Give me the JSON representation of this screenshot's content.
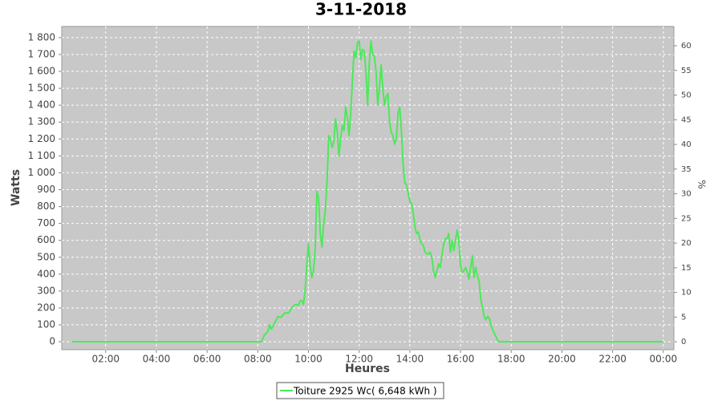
{
  "chart_data": {
    "type": "line",
    "title": "3-11-2018",
    "x_label": "Heures",
    "y_label": "Watts",
    "y2_label": "%",
    "x": [
      40,
      480,
      484,
      488,
      492,
      496,
      500,
      504,
      508,
      512,
      516,
      520,
      524,
      528,
      532,
      536,
      540,
      544,
      548,
      552,
      556,
      560,
      564,
      568,
      572,
      576,
      580,
      584,
      588,
      592,
      596,
      600,
      604,
      608,
      612,
      616,
      620,
      624,
      628,
      632,
      636,
      640,
      644,
      648,
      652,
      656,
      660,
      664,
      668,
      672,
      676,
      680,
      684,
      688,
      692,
      696,
      700,
      704,
      708,
      712,
      716,
      720,
      724,
      728,
      732,
      736,
      740,
      744,
      748,
      752,
      756,
      760,
      764,
      768,
      772,
      776,
      780,
      784,
      788,
      792,
      796,
      800,
      804,
      808,
      812,
      816,
      820,
      824,
      828,
      832,
      836,
      840,
      844,
      848,
      852,
      856,
      860,
      864,
      868,
      872,
      876,
      880,
      884,
      888,
      892,
      896,
      900,
      904,
      908,
      912,
      916,
      920,
      924,
      928,
      932,
      936,
      940,
      944,
      948,
      952,
      956,
      960,
      964,
      968,
      972,
      976,
      980,
      984,
      988,
      992,
      996,
      1000,
      1004,
      1008,
      1012,
      1016,
      1020,
      1024,
      1028,
      1032,
      1036,
      1040,
      1044,
      1048,
      1052,
      1440
    ],
    "series": [
      {
        "name": "Toiture 2925 Wc( 6,648 kWh )",
        "color": "#4ee85a",
        "values": [
          0,
          0,
          0,
          0,
          20,
          40,
          50,
          60,
          100,
          75,
          90,
          110,
          130,
          150,
          145,
          145,
          160,
          170,
          170,
          170,
          180,
          200,
          210,
          220,
          220,
          215,
          240,
          245,
          220,
          300,
          450,
          580,
          450,
          380,
          420,
          550,
          890,
          850,
          640,
          560,
          700,
          780,
          950,
          1220,
          1200,
          1150,
          1180,
          1320,
          1250,
          1100,
          1200,
          1280,
          1250,
          1390,
          1330,
          1220,
          1350,
          1550,
          1720,
          1680,
          1770,
          1780,
          1670,
          1730,
          1720,
          1600,
          1400,
          1650,
          1780,
          1700,
          1690,
          1600,
          1400,
          1500,
          1640,
          1500,
          1400,
          1450,
          1470,
          1300,
          1240,
          1220,
          1170,
          1200,
          1350,
          1390,
          1250,
          1050,
          940,
          930,
          880,
          830,
          820,
          760,
          680,
          640,
          650,
          600,
          580,
          570,
          530,
          520,
          520,
          530,
          500,
          420,
          380,
          420,
          460,
          440,
          510,
          580,
          610,
          610,
          640,
          530,
          600,
          540,
          600,
          660,
          600,
          450,
          410,
          420,
          440,
          410,
          370,
          440,
          510,
          380,
          440,
          390,
          360,
          250,
          200,
          150,
          130,
          150,
          140,
          100,
          70,
          50,
          30,
          5,
          0,
          0
        ]
      }
    ],
    "xlim": [
      16,
      1465
    ],
    "xticks": [
      {
        "value": 120,
        "label": "02:00"
      },
      {
        "value": 240,
        "label": "04:00"
      },
      {
        "value": 360,
        "label": "06:00"
      },
      {
        "value": 480,
        "label": "08:00"
      },
      {
        "value": 600,
        "label": "10:00"
      },
      {
        "value": 720,
        "label": "12:00"
      },
      {
        "value": 840,
        "label": "14:00"
      },
      {
        "value": 960,
        "label": "16:00"
      },
      {
        "value": 1080,
        "label": "18:00"
      },
      {
        "value": 1200,
        "label": "20:00"
      },
      {
        "value": 1320,
        "label": "22:00"
      },
      {
        "value": 1440,
        "label": "00:00"
      }
    ],
    "ylim": [
      -47,
      1866
    ],
    "yticks": [
      0,
      100,
      200,
      300,
      400,
      500,
      600,
      700,
      800,
      900,
      {
        "value": 1000,
        "label": "1 000"
      },
      {
        "value": 1100,
        "label": "1 100"
      },
      {
        "value": 1200,
        "label": "1 200"
      },
      {
        "value": 1300,
        "label": "1 300"
      },
      {
        "value": 1400,
        "label": "1 400"
      },
      {
        "value": 1500,
        "label": "1 500"
      },
      {
        "value": 1600,
        "label": "1 600"
      },
      {
        "value": 1700,
        "label": "1 700"
      },
      {
        "value": 1800,
        "label": "1 800"
      }
    ],
    "y2lim": [
      -1.6,
      63.9
    ],
    "y2ticks": [
      0,
      5,
      10,
      15,
      20,
      25,
      30,
      35,
      40,
      45,
      50,
      55,
      60
    ],
    "grid": true
  }
}
